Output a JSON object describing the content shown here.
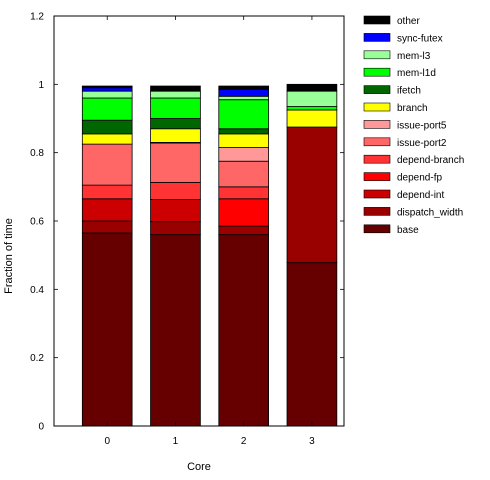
{
  "chart_data": {
    "type": "bar",
    "stacked": true,
    "xlabel": "Core",
    "ylabel": "Fraction of time",
    "ylim": [
      0,
      1.2
    ],
    "yticks": [
      "0",
      "0.2",
      "0.4",
      "0.6",
      "0.8",
      "1",
      "1.2"
    ],
    "categories": [
      "0",
      "1",
      "2",
      "3"
    ],
    "legend_position": "right",
    "series": [
      {
        "name": "base",
        "color": "#660000",
        "values": [
          0.565,
          0.56,
          0.56,
          0.478
        ]
      },
      {
        "name": "dispatch_width",
        "color": "#990000",
        "values": [
          0.035,
          0.038,
          0.025,
          0.397
        ]
      },
      {
        "name": "depend-int",
        "color": "#cc0000",
        "values": [
          0.065,
          0.065,
          0.0,
          0.0
        ]
      },
      {
        "name": "depend-fp",
        "color": "#ff0000",
        "values": [
          0.0,
          0.0,
          0.08,
          0.0
        ]
      },
      {
        "name": "depend-branch",
        "color": "#ff3333",
        "values": [
          0.04,
          0.05,
          0.035,
          0.0
        ]
      },
      {
        "name": "issue-port2",
        "color": "#ff6666",
        "values": [
          0.12,
          0.115,
          0.075,
          0.0
        ]
      },
      {
        "name": "issue-port5",
        "color": "#ff9999",
        "values": [
          0.0,
          0.002,
          0.04,
          0.0
        ]
      },
      {
        "name": "branch",
        "color": "#ffff00",
        "values": [
          0.03,
          0.04,
          0.04,
          0.05
        ]
      },
      {
        "name": "ifetch",
        "color": "#006600",
        "values": [
          0.04,
          0.03,
          0.015,
          0.0
        ]
      },
      {
        "name": "mem-l1d",
        "color": "#00ff00",
        "values": [
          0.065,
          0.06,
          0.085,
          0.01
        ]
      },
      {
        "name": "mem-l3",
        "color": "#99ff99",
        "values": [
          0.02,
          0.02,
          0.01,
          0.045
        ]
      },
      {
        "name": "sync-futex",
        "color": "#0000ff",
        "values": [
          0.01,
          0.0,
          0.02,
          0.0
        ]
      },
      {
        "name": "other",
        "color": "#000000",
        "values": [
          0.005,
          0.015,
          0.01,
          0.02
        ]
      }
    ]
  }
}
